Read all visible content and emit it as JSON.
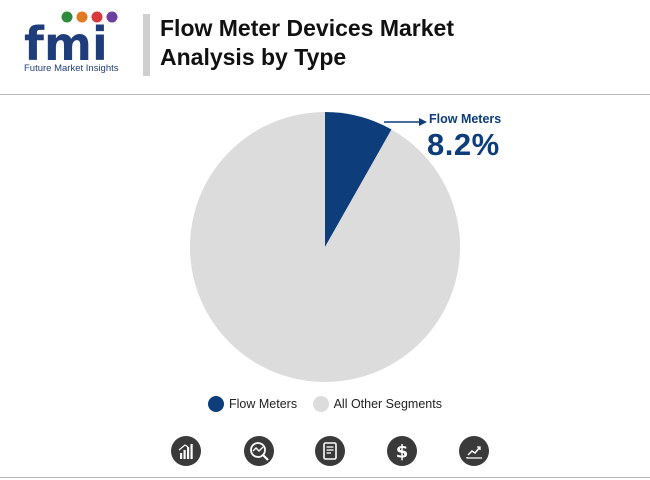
{
  "header": {
    "logo_text": "fmi",
    "logo_subtitle": "Future Market Insights",
    "title_line1": "Flow Meter Devices Market",
    "title_line2": "Analysis by Type"
  },
  "chart_data": {
    "type": "pie",
    "title": "Flow Meter Devices Market Analysis by Type",
    "slices": [
      {
        "label": "Flow Meters",
        "value": 8.2,
        "color": "#0d3d7a"
      },
      {
        "label": "All Other Segments",
        "value": 91.8,
        "color": "#dcdcdc"
      }
    ],
    "callout": {
      "label": "Flow Meters",
      "value_text": "8.2%"
    },
    "legend": [
      "Flow Meters",
      "All Other Segments"
    ],
    "legend_position": "bottom"
  },
  "colors": {
    "brand_navy": "#0d3d7a",
    "other_gray": "#dcdcdc",
    "icon_dark": "#3a3a3a"
  },
  "footer_icons": [
    "bar-chart-icon",
    "trend-search-icon",
    "document-icon",
    "dollar-icon",
    "line-chart-icon"
  ]
}
